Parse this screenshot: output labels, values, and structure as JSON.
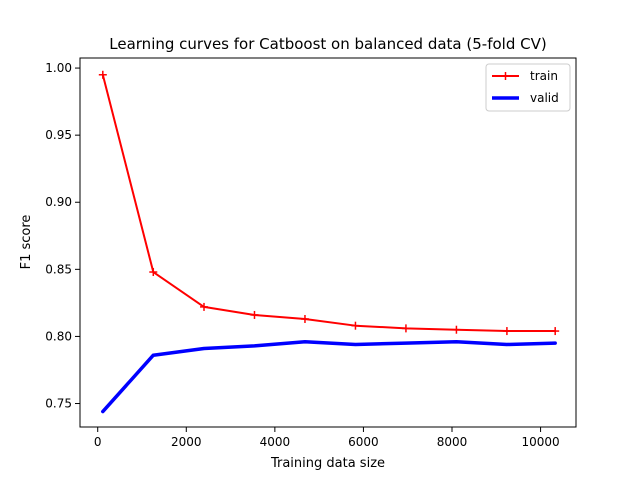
{
  "chart_data": {
    "type": "line",
    "title": "Learning curves for Catboost on balanced data (5-fold CV)",
    "xlabel": "Training data size",
    "ylabel": "F1 score",
    "xlim": [
      -400,
      10800
    ],
    "ylim": [
      0.7325,
      1.0075
    ],
    "xticks": [
      0,
      2000,
      4000,
      6000,
      8000,
      10000
    ],
    "xtick_labels": [
      "0",
      "2000",
      "4000",
      "6000",
      "8000",
      "10000"
    ],
    "yticks": [
      0.75,
      0.8,
      0.85,
      0.9,
      0.95,
      1.0
    ],
    "ytick_labels": [
      "0.75",
      "0.80",
      "0.85",
      "0.90",
      "0.95",
      "1.00"
    ],
    "grid": false,
    "legend_position": "top-right",
    "x": [
      115,
      1255,
      2400,
      3540,
      4680,
      5820,
      6960,
      8100,
      9240,
      10330
    ],
    "series": [
      {
        "name": "train",
        "color": "#ff0000",
        "marker": "+",
        "values": [
          0.995,
          0.848,
          0.822,
          0.816,
          0.813,
          0.808,
          0.806,
          0.805,
          0.804,
          0.804
        ]
      },
      {
        "name": "valid",
        "color": "#0000ff",
        "marker": "none",
        "values": [
          0.744,
          0.786,
          0.791,
          0.793,
          0.796,
          0.794,
          0.795,
          0.796,
          0.794,
          0.795
        ]
      }
    ]
  }
}
